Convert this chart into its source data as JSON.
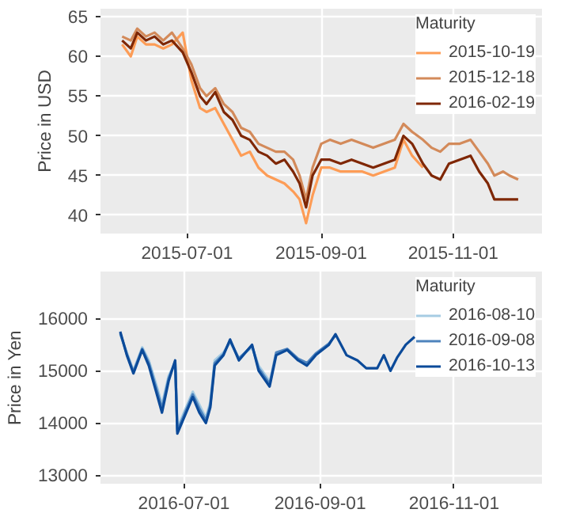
{
  "chart_data": [
    {
      "type": "line",
      "ylabel": "Price in USD",
      "legend_title": "Maturity",
      "legend": "top right",
      "grid": true,
      "xlim": [
        "2015-05-22",
        "2015-12-12"
      ],
      "ylim": [
        37.7,
        66
      ],
      "xticks": [
        "2015-07-01",
        "2015-09-01",
        "2015-11-01"
      ],
      "yticks": [
        40,
        45,
        50,
        55,
        60,
        65
      ],
      "x": [
        "2015-06-01",
        "2015-06-05",
        "2015-06-08",
        "2015-06-12",
        "2015-06-16",
        "2015-06-20",
        "2015-06-24",
        "2015-06-29",
        "2015-07-03",
        "2015-07-07",
        "2015-07-10",
        "2015-07-14",
        "2015-07-18",
        "2015-07-22",
        "2015-07-26",
        "2015-07-30",
        "2015-08-03",
        "2015-08-07",
        "2015-08-11",
        "2015-08-15",
        "2015-08-19",
        "2015-08-22",
        "2015-08-25",
        "2015-08-28",
        "2015-09-01",
        "2015-09-05",
        "2015-09-10",
        "2015-09-15",
        "2015-09-20",
        "2015-09-25",
        "2015-09-30",
        "2015-10-05",
        "2015-10-09",
        "2015-10-13",
        "2015-10-18",
        "2015-10-22",
        "2015-10-26",
        "2015-10-30",
        "2015-11-04",
        "2015-11-09",
        "2015-11-13",
        "2015-11-17",
        "2015-11-20",
        "2015-11-24",
        "2015-11-27",
        "2015-12-01"
      ],
      "series": [
        {
          "name": "2015-10-19",
          "color": "#fd9c56",
          "values": [
            61.5,
            60,
            62.5,
            61.5,
            61.5,
            61,
            61.5,
            63,
            57,
            53.5,
            53,
            53.5,
            51.5,
            49.5,
            47.5,
            48,
            46,
            45,
            44.5,
            44,
            43,
            42,
            39,
            42.5,
            46,
            46,
            45.5,
            45.5,
            45.5,
            45,
            45.5,
            46,
            49.5,
            47.5,
            46,
            null,
            null,
            null,
            null,
            null,
            null,
            null,
            null,
            null,
            null,
            null
          ]
        },
        {
          "name": "2015-12-18",
          "color": "#d38a5a",
          "values": [
            62.5,
            62,
            63.5,
            62.5,
            63,
            62,
            63,
            61,
            59,
            56,
            55,
            56,
            54,
            53,
            51,
            50.5,
            49,
            48.5,
            48,
            48,
            47,
            45,
            42,
            46,
            49,
            49.5,
            49,
            49.5,
            49,
            48.5,
            49,
            49.5,
            51.5,
            50.5,
            49.5,
            48.5,
            48,
            49,
            49,
            49.5,
            48,
            46.5,
            45,
            45.5,
            45,
            44.5
          ]
        },
        {
          "name": "2016-02-19",
          "color": "#7f2704",
          "values": [
            62,
            61,
            63,
            62,
            62.5,
            61.5,
            62,
            60.5,
            58,
            55,
            54,
            55.5,
            53,
            52,
            50,
            49.5,
            48,
            47.5,
            46.5,
            47,
            45.5,
            44,
            41,
            45,
            47,
            47,
            46.5,
            47,
            46.5,
            46,
            46.5,
            47,
            50,
            49,
            46.5,
            45,
            44.5,
            46.5,
            47,
            47.5,
            45.5,
            44,
            42,
            42,
            42,
            42
          ]
        }
      ]
    },
    {
      "type": "line",
      "ylabel": "Price in Yen",
      "legend_title": "Maturity",
      "legend": "top right",
      "grid": true,
      "xlim": [
        "2016-05-24",
        "2016-12-11"
      ],
      "ylim": [
        12840,
        16900
      ],
      "xticks": [
        "2016-07-01",
        "2016-09-01",
        "2016-11-01"
      ],
      "yticks": [
        13000,
        14000,
        15000,
        16000
      ],
      "x": [
        "2016-06-02",
        "2016-06-05",
        "2016-06-08",
        "2016-06-12",
        "2016-06-15",
        "2016-06-19",
        "2016-06-21",
        "2016-06-24",
        "2016-06-27",
        "2016-06-28",
        "2016-07-01",
        "2016-07-05",
        "2016-07-08",
        "2016-07-11",
        "2016-07-13",
        "2016-07-15",
        "2016-07-19",
        "2016-07-22",
        "2016-07-26",
        "2016-08-01",
        "2016-08-04",
        "2016-08-09",
        "2016-08-12",
        "2016-08-17",
        "2016-08-22",
        "2016-08-26",
        "2016-08-30",
        "2016-09-05",
        "2016-09-08",
        "2016-09-13",
        "2016-09-18",
        "2016-09-22",
        "2016-09-27",
        "2016-09-30",
        "2016-10-03",
        "2016-10-06",
        "2016-10-10",
        "2016-10-14"
      ],
      "series": [
        {
          "name": "2016-08-10",
          "color": "#a6cce3",
          "values": [
            15700,
            15350,
            15000,
            15450,
            15200,
            14650,
            14350,
            14900,
            15150,
            13900,
            14200,
            14600,
            14350,
            14100,
            14400,
            15200,
            15350,
            15550,
            15250,
            15450,
            15100,
            14800,
            null,
            null,
            null,
            null,
            null,
            null,
            null,
            null,
            null,
            null,
            null,
            null,
            null,
            null,
            null,
            null
          ]
        },
        {
          "name": "2016-09-08",
          "color": "#4e83bd",
          "values": [
            15720,
            15320,
            14980,
            15420,
            15150,
            14580,
            14280,
            14850,
            15180,
            13850,
            14150,
            14550,
            14280,
            14050,
            14350,
            15150,
            15320,
            15580,
            15230,
            15480,
            15050,
            14750,
            15350,
            15420,
            15230,
            15150,
            15330,
            15520,
            15680,
            null,
            null,
            null,
            null,
            null,
            null,
            null,
            null,
            null
          ]
        },
        {
          "name": "2016-10-13",
          "color": "#0b4a99",
          "values": [
            15750,
            15300,
            14950,
            15400,
            15100,
            14500,
            14200,
            14800,
            15200,
            13800,
            14100,
            14500,
            14200,
            14000,
            14300,
            15100,
            15300,
            15600,
            15200,
            15500,
            15000,
            14700,
            15300,
            15400,
            15200,
            15100,
            15300,
            15500,
            15700,
            15300,
            15200,
            15050,
            15050,
            15300,
            15000,
            15250,
            15500,
            15650
          ]
        }
      ]
    }
  ]
}
